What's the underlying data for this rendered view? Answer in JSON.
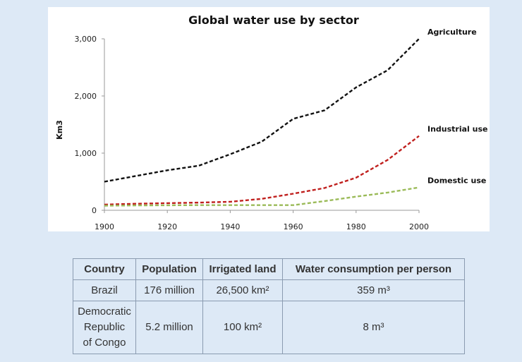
{
  "chart_data": {
    "type": "line",
    "title": "Global water use by sector",
    "xlabel": "",
    "ylabel": "Km3",
    "xlim": [
      1900,
      2000
    ],
    "ylim": [
      0,
      3000
    ],
    "x_ticks": [
      "1900",
      "1920",
      "1940",
      "1960",
      "1980",
      "2000"
    ],
    "y_ticks": [
      "0",
      "1,000",
      "2,000",
      "3,000"
    ],
    "x": [
      1900,
      1910,
      1920,
      1930,
      1940,
      1950,
      1960,
      1970,
      1980,
      1990,
      2000
    ],
    "series": [
      {
        "name": "Agriculture",
        "color": "#111111",
        "values": [
          500,
          600,
          700,
          780,
          980,
          1200,
          1600,
          1750,
          2150,
          2450,
          3000
        ]
      },
      {
        "name": "Industrial use",
        "color": "#c0201e",
        "values": [
          100,
          115,
          125,
          135,
          150,
          200,
          290,
          390,
          570,
          880,
          1300
        ]
      },
      {
        "name": "Domestic use",
        "color": "#9bbb59",
        "values": [
          80,
          85,
          88,
          90,
          90,
          90,
          90,
          160,
          240,
          310,
          400
        ]
      }
    ],
    "legend": "inline-right",
    "grid": false
  },
  "table": {
    "headers": [
      "Country",
      "Population",
      "Irrigated land",
      "Water consumption per person"
    ],
    "rows": [
      {
        "country": [
          "Brazil"
        ],
        "population": "176 million",
        "irrigated": "26,500 km²",
        "consumption": "359 m³"
      },
      {
        "country": [
          "Democratic",
          "Republic",
          "of Congo"
        ],
        "population": "5.2 million",
        "irrigated": "100 km²",
        "consumption": "8 m³"
      }
    ]
  }
}
